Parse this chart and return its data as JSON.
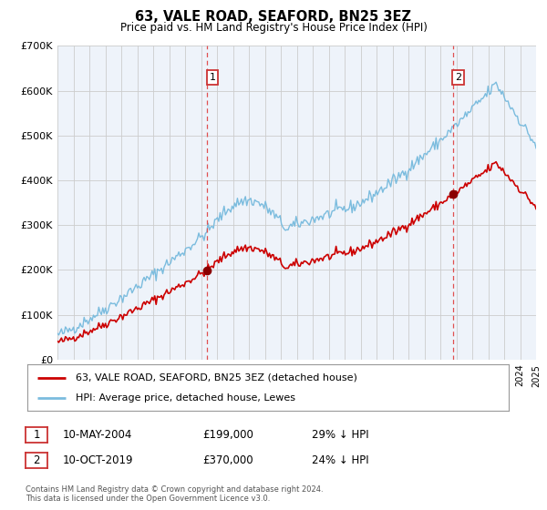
{
  "title": "63, VALE ROAD, SEAFORD, BN25 3EZ",
  "subtitle": "Price paid vs. HM Land Registry's House Price Index (HPI)",
  "legend_line1": "63, VALE ROAD, SEAFORD, BN25 3EZ (detached house)",
  "legend_line2": "HPI: Average price, detached house, Lewes",
  "footnote1": "Contains HM Land Registry data © Crown copyright and database right 2024.",
  "footnote2": "This data is licensed under the Open Government Licence v3.0.",
  "marker1_date": "10-MAY-2004",
  "marker1_price": "£199,000",
  "marker1_hpi": "29% ↓ HPI",
  "marker1_year": 2004.36,
  "marker1_value": 199000,
  "marker2_date": "10-OCT-2019",
  "marker2_price": "£370,000",
  "marker2_hpi": "24% ↓ HPI",
  "marker2_year": 2019.78,
  "marker2_value": 370000,
  "hpi_color": "#7bbcde",
  "price_color": "#cc0000",
  "marker_color": "#8b0000",
  "vline_color": "#e05050",
  "grid_color": "#cccccc",
  "bg_color": "#eef3fa",
  "ylim": [
    0,
    700000
  ],
  "xlim_start": 1995,
  "xlim_end": 2025,
  "yticks": [
    0,
    100000,
    200000,
    300000,
    400000,
    500000,
    600000,
    700000
  ],
  "ytick_labels": [
    "£0",
    "£100K",
    "£200K",
    "£300K",
    "£400K",
    "£500K",
    "£600K",
    "£700K"
  ]
}
